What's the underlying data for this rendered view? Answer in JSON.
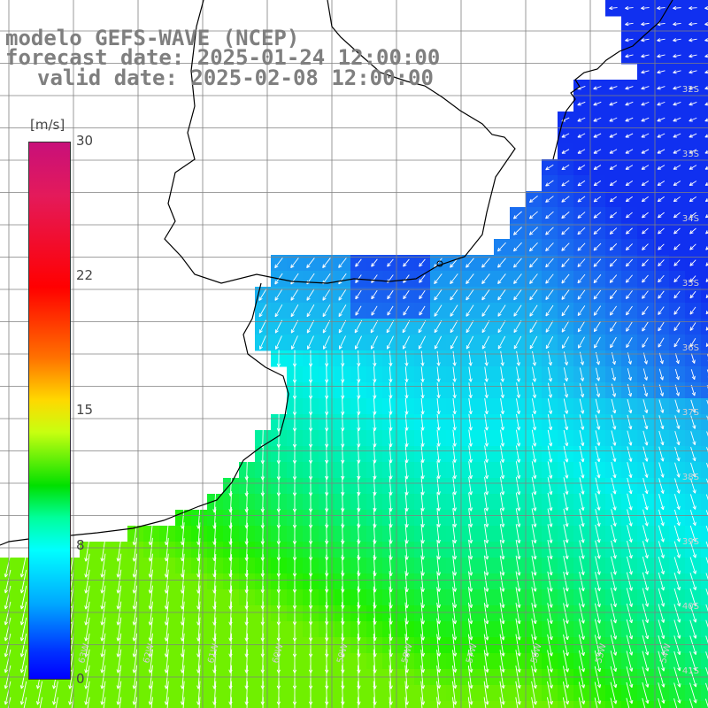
{
  "title": {
    "line1": "modelo GEFS-WAVE (NCEP)",
    "line2": "forecast date: 2025-01-24 12:00:00",
    "line3": "valid date: 2025-02-08 12:00:00"
  },
  "colorbar": {
    "unit": "[m/s]",
    "ticks": [
      "30",
      "22",
      "15",
      "8",
      "0"
    ]
  },
  "grid": {
    "lat_labels": [
      "32S",
      "33S",
      "34S",
      "35S",
      "36S",
      "37S",
      "38S",
      "39S",
      "40S",
      "41S"
    ],
    "lon_labels": [
      "63W",
      "62W",
      "61W",
      "60W",
      "59W",
      "58W",
      "57W",
      "56W",
      "55W",
      "54W"
    ]
  },
  "colors": {
    "land": "#ffffff",
    "coast": "#000000",
    "grid": "#808080",
    "arrows": "#ffffff",
    "weak_wind": "#1a4ff0",
    "moderate_wind": "#00e8f0",
    "strong_wind": "#2ef000"
  }
}
